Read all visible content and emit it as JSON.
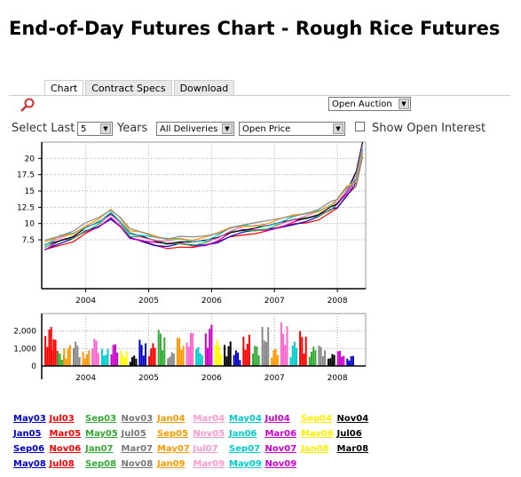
{
  "page": {
    "title": "End-of-Day Futures Chart - Rough Rice Futures"
  },
  "tabs": [
    {
      "label": "Chart",
      "active": true
    },
    {
      "label": "Contract Specs",
      "active": false
    },
    {
      "label": "Download",
      "active": false
    }
  ],
  "controls": {
    "open_auction": "Open Auction",
    "select_last_label": "Select Last",
    "years_value": "5",
    "years_label": "Years",
    "deliveries_value": "All Deliveries",
    "price_value": "Open Price",
    "show_open_interest_label": "Show Open Interest",
    "show_open_interest_checked": false
  },
  "chart_data": [
    {
      "type": "line",
      "x_ticks": [
        "2004",
        "2005",
        "2006",
        "2007",
        "2008"
      ],
      "y_ticks": [
        "7.5",
        "10",
        "12.5",
        "15",
        "17.5",
        "20"
      ],
      "ylim": [
        0,
        22.5
      ],
      "xlim": [
        2003.3,
        2008.45
      ],
      "grid": true,
      "series_colors": [
        "#ff0000",
        "#0000cc",
        "#cc00cc",
        "#33aa33",
        "#000000",
        "#ff66cc",
        "#00cccc",
        "#ff9900",
        "#888888"
      ],
      "points": [
        [
          2003.35,
          6.5
        ],
        [
          2003.6,
          7.6
        ],
        [
          2003.8,
          8.1
        ],
        [
          2004.0,
          9.2
        ],
        [
          2004.2,
          10.0
        ],
        [
          2004.4,
          11.4
        ],
        [
          2004.55,
          10.1
        ],
        [
          2004.7,
          8.3
        ],
        [
          2004.9,
          7.9
        ],
        [
          2005.1,
          7.4
        ],
        [
          2005.3,
          7.1
        ],
        [
          2005.5,
          7.3
        ],
        [
          2005.7,
          7.0
        ],
        [
          2005.9,
          7.2
        ],
        [
          2006.1,
          7.8
        ],
        [
          2006.3,
          8.8
        ],
        [
          2006.5,
          9.2
        ],
        [
          2006.7,
          9.3
        ],
        [
          2006.9,
          9.5
        ],
        [
          2007.1,
          10.0
        ],
        [
          2007.3,
          10.6
        ],
        [
          2007.5,
          11.0
        ],
        [
          2007.7,
          11.5
        ],
        [
          2007.9,
          12.5
        ],
        [
          2008.0,
          13.2
        ],
        [
          2008.15,
          15.0
        ],
        [
          2008.3,
          18.0
        ],
        [
          2008.4,
          22.5
        ]
      ]
    },
    {
      "type": "bar",
      "y_ticks": [
        "0",
        "1,000",
        "2,000"
      ],
      "x_ticks": [
        "2004",
        "2005",
        "2006",
        "2007",
        "2008"
      ],
      "ylim": [
        0,
        3000
      ],
      "grid": true,
      "xlim": [
        2003.3,
        2008.45
      ],
      "bars": [
        [
          2003.4,
          2300,
          "#ff0000"
        ],
        [
          2003.5,
          1600,
          "#ff0000"
        ],
        [
          2003.6,
          800,
          "#33aa33"
        ],
        [
          2003.7,
          1200,
          "#ff9900"
        ],
        [
          2003.85,
          1400,
          "#888888"
        ],
        [
          2004.0,
          900,
          "#ff9900"
        ],
        [
          2004.15,
          1600,
          "#ff66cc"
        ],
        [
          2004.3,
          1000,
          "#00cccc"
        ],
        [
          2004.45,
          1300,
          "#cc00cc"
        ],
        [
          2004.6,
          900,
          "#ffff00"
        ],
        [
          2004.75,
          600,
          "#000000"
        ],
        [
          2004.9,
          1500,
          "#0000cc"
        ],
        [
          2005.05,
          1300,
          "#ff0000"
        ],
        [
          2005.2,
          2100,
          "#33aa33"
        ],
        [
          2005.35,
          800,
          "#888888"
        ],
        [
          2005.5,
          1700,
          "#ff9900"
        ],
        [
          2005.65,
          2000,
          "#ff66cc"
        ],
        [
          2005.8,
          1100,
          "#00cccc"
        ],
        [
          2005.95,
          2400,
          "#cc00cc"
        ],
        [
          2006.1,
          1500,
          "#ffff00"
        ],
        [
          2006.25,
          1400,
          "#000000"
        ],
        [
          2006.4,
          900,
          "#0000cc"
        ],
        [
          2006.55,
          1800,
          "#ff0000"
        ],
        [
          2006.7,
          1200,
          "#33aa33"
        ],
        [
          2006.85,
          2300,
          "#888888"
        ],
        [
          2007.0,
          1000,
          "#ff9900"
        ],
        [
          2007.15,
          2500,
          "#ff66cc"
        ],
        [
          2007.3,
          1400,
          "#00cccc"
        ],
        [
          2007.45,
          2000,
          "#ff0000"
        ],
        [
          2007.6,
          1100,
          "#33aa33"
        ],
        [
          2007.75,
          1200,
          "#888888"
        ],
        [
          2007.9,
          700,
          "#000000"
        ],
        [
          2008.05,
          900,
          "#cc00cc"
        ],
        [
          2008.2,
          600,
          "#0000cc"
        ]
      ]
    }
  ],
  "legend": [
    [
      {
        "label": "May03",
        "color": "#0000cc"
      },
      {
        "label": "Jul03",
        "color": "#ff0000"
      },
      {
        "label": "Sep03",
        "color": "#33aa33"
      },
      {
        "label": "Nov03",
        "color": "#777777"
      },
      {
        "label": "Jan04",
        "color": "#ff9900"
      },
      {
        "label": "Mar04",
        "color": "#ff99cc"
      },
      {
        "label": "May04",
        "color": "#00cccc"
      },
      {
        "label": "Jul04",
        "color": "#cc00cc"
      },
      {
        "label": "Sep04",
        "color": "#ffee00"
      },
      {
        "label": "Nov04",
        "color": "#000000"
      }
    ],
    [
      {
        "label": "Jan05",
        "color": "#0000cc"
      },
      {
        "label": "Mar05",
        "color": "#ff0000"
      },
      {
        "label": "May05",
        "color": "#33aa33"
      },
      {
        "label": "Jul05",
        "color": "#777777"
      },
      {
        "label": "Sep05",
        "color": "#ff9900"
      },
      {
        "label": "Nov05",
        "color": "#ff99cc"
      },
      {
        "label": "Jan06",
        "color": "#00cccc"
      },
      {
        "label": "Mar06",
        "color": "#cc00cc"
      },
      {
        "label": "May06",
        "color": "#ffee00"
      },
      {
        "label": "Jul06",
        "color": "#000000"
      }
    ],
    [
      {
        "label": "Sep06",
        "color": "#0000cc"
      },
      {
        "label": "Nov06",
        "color": "#ff0000"
      },
      {
        "label": "Jan07",
        "color": "#33aa33"
      },
      {
        "label": "Mar07",
        "color": "#777777"
      },
      {
        "label": "May07",
        "color": "#ff9900"
      },
      {
        "label": "Jul07",
        "color": "#ff99cc"
      },
      {
        "label": "Sep07",
        "color": "#00cccc"
      },
      {
        "label": "Nov07",
        "color": "#cc00cc"
      },
      {
        "label": "Jan08",
        "color": "#ffee00"
      },
      {
        "label": "Mar08",
        "color": "#000000"
      }
    ],
    [
      {
        "label": "May08",
        "color": "#0000cc"
      },
      {
        "label": "Jul08",
        "color": "#ff0000"
      },
      {
        "label": "Sep08",
        "color": "#33aa33"
      },
      {
        "label": "Nov08",
        "color": "#777777"
      },
      {
        "label": "Jan09",
        "color": "#ff9900"
      },
      {
        "label": "Mar09",
        "color": "#ff99cc"
      },
      {
        "label": "May09",
        "color": "#00cccc"
      },
      {
        "label": "Nov09",
        "color": "#cc00cc"
      }
    ]
  ]
}
